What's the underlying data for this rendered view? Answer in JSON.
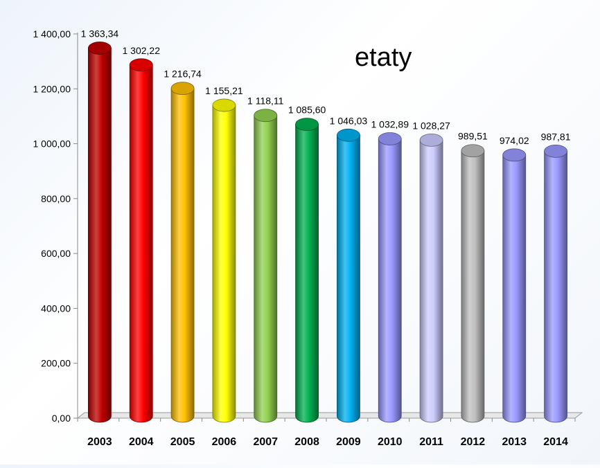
{
  "chart_data": {
    "type": "bar",
    "title": "etaty",
    "categories": [
      "2003",
      "2004",
      "2005",
      "2006",
      "2007",
      "2008",
      "2009",
      "2010",
      "2011",
      "2012",
      "2013",
      "2014"
    ],
    "values": [
      1363.34,
      1302.22,
      1216.74,
      1155.21,
      1118.11,
      1085.6,
      1046.03,
      1032.89,
      1028.27,
      989.51,
      974.02,
      987.81
    ],
    "value_labels": [
      "1 363,34",
      "1 302,22",
      "1 216,74",
      "1 155,21",
      "1 118,11",
      "1 085,60",
      "1 046,03",
      "1 032,89",
      "1 028,27",
      "989,51",
      "974,02",
      "987,81"
    ],
    "ylim": [
      0,
      1400
    ],
    "yticks": [
      0,
      200,
      400,
      600,
      800,
      1000,
      1200,
      1400
    ],
    "ytick_labels": [
      "0,00",
      "200,00",
      "400,00",
      "600,00",
      "800,00",
      "1 000,00",
      "1 200,00",
      "1 400,00"
    ],
    "bar_colors": [
      "#c00000",
      "#ff0000",
      "#ffc000",
      "#ffff00",
      "#92d050",
      "#00b050",
      "#00b0f0",
      "#9999ff",
      "#ccccff",
      "#bfbfbf",
      "#9999ff",
      "#9999ff"
    ],
    "grid": false,
    "legend": "none"
  }
}
